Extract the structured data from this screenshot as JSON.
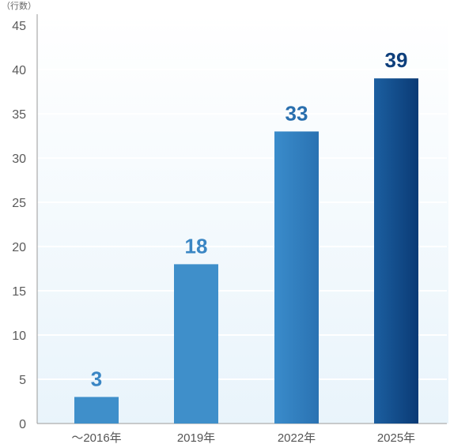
{
  "chart_data": {
    "type": "bar",
    "unit_label": "（行数）",
    "categories": [
      "～2016年",
      "2019年",
      "2022年",
      "2025年"
    ],
    "values": [
      3,
      18,
      33,
      39
    ],
    "data_labels": [
      "3",
      "18",
      "33",
      "39"
    ],
    "ylim": [
      0,
      45
    ],
    "yticks": [
      "0",
      "5",
      "10",
      "15",
      "20",
      "25",
      "30",
      "35",
      "40",
      "45"
    ],
    "grid": true,
    "colors": {
      "bar": "#3f8fca",
      "bar_highlight_top": "#1a5a9c",
      "bar_highlight_bottom": "#0a3c78",
      "label": "#3a86c4",
      "label_highlight": "#0e3f7c",
      "background_top": "#ffffff",
      "background_bottom": "#e9f4fb"
    }
  }
}
